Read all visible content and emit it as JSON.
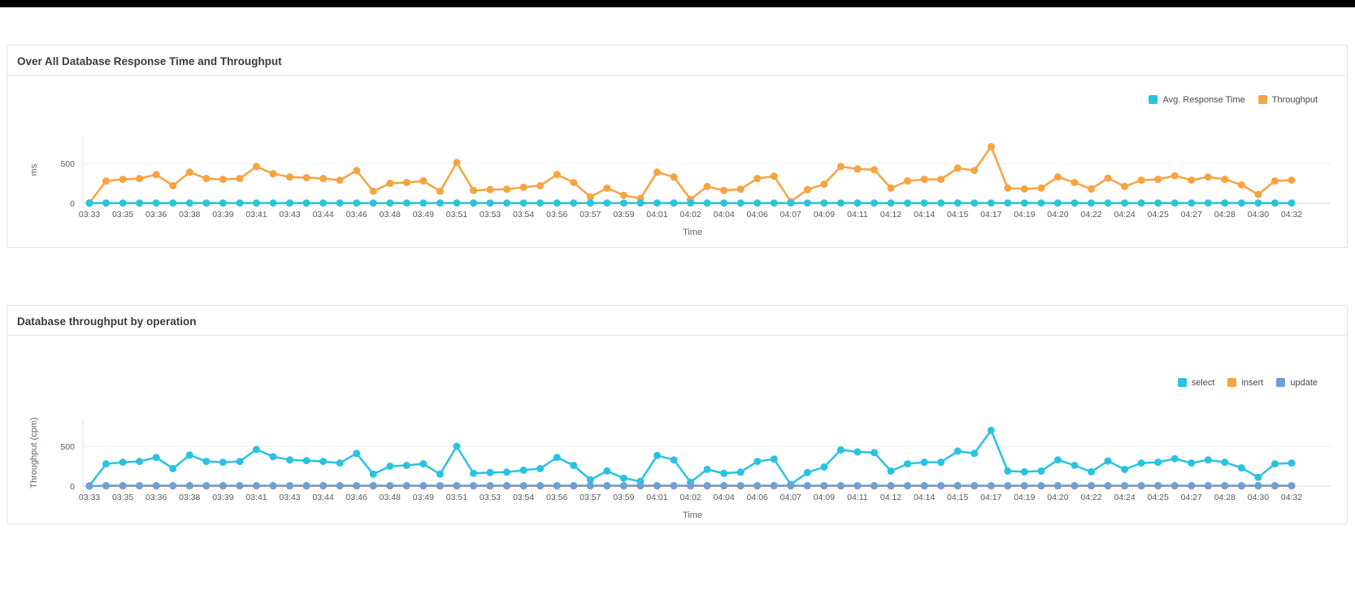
{
  "page": {
    "top_bar_color": "#000000",
    "background": "#ffffff"
  },
  "colors": {
    "cyan": "#29c3e2",
    "orange": "#f7a440",
    "blue": "#6aa1d8",
    "gridline": "#efefef",
    "baseline": "#d9d9d9",
    "axis_line": "#e0e0e0",
    "tick_text": "#55595c",
    "title_text": "#3c3c3c"
  },
  "chart_data": [
    {
      "type": "line",
      "title": "Over All Database Response Time and Throughput",
      "xlabel": "Time",
      "ylabel": "ms",
      "y_ticks": [
        0,
        500
      ],
      "ylim": [
        0,
        760
      ],
      "grid": true,
      "legend_position": "top-right",
      "label_every": 2,
      "x_labels": [
        "03:33",
        "03:35",
        "03:36",
        "03:38",
        "03:39",
        "03:41",
        "03:43",
        "03:44",
        "03:46",
        "03:48",
        "03:49",
        "03:51",
        "03:53",
        "03:54",
        "03:56",
        "03:57",
        "03:59",
        "04:01",
        "04:02",
        "04:04",
        "04:06",
        "04:07",
        "04:09",
        "04:11",
        "04:12",
        "04:14",
        "04:15",
        "04:17",
        "04:19",
        "04:20",
        "04:22",
        "04:24",
        "04:25",
        "04:27",
        "04:28",
        "04:30",
        "04:32"
      ],
      "draw_order": [
        1,
        0
      ],
      "series": [
        {
          "name": "Avg. Response Time",
          "color_key": "cyan",
          "values": [
            0,
            3,
            3,
            3,
            3,
            3,
            3,
            3,
            3,
            3,
            3,
            3,
            3,
            3,
            3,
            3,
            3,
            3,
            3,
            3,
            3,
            3,
            3,
            3,
            3,
            3,
            3,
            3,
            3,
            3,
            3,
            3,
            3,
            3,
            3,
            3,
            3,
            3,
            3,
            3,
            3,
            3,
            3,
            3,
            3,
            3,
            3,
            3,
            3,
            3,
            3,
            3,
            3,
            3,
            3,
            3,
            3,
            3,
            3,
            3,
            3,
            3,
            3,
            3,
            3,
            3,
            3,
            3,
            3,
            3,
            3,
            3,
            3
          ]
        },
        {
          "name": "Throughput",
          "color_key": "orange",
          "values": [
            5,
            280,
            300,
            310,
            360,
            220,
            390,
            310,
            300,
            310,
            460,
            370,
            330,
            320,
            310,
            290,
            410,
            150,
            250,
            260,
            280,
            150,
            510,
            160,
            170,
            175,
            200,
            220,
            360,
            260,
            80,
            190,
            100,
            60,
            390,
            330,
            50,
            210,
            160,
            175,
            310,
            340,
            20,
            170,
            240,
            460,
            430,
            420,
            190,
            280,
            300,
            300,
            440,
            410,
            710,
            190,
            180,
            190,
            330,
            260,
            180,
            315,
            210,
            290,
            300,
            345,
            290,
            330,
            300,
            230,
            110,
            280,
            290
          ]
        }
      ]
    },
    {
      "type": "line",
      "title": "Database throughput by operation",
      "xlabel": "Time",
      "ylabel": "Throughput (cpm)",
      "y_ticks": [
        0,
        500
      ],
      "ylim": [
        0,
        760
      ],
      "grid": true,
      "legend_position": "top-right",
      "label_every": 2,
      "x_labels": [
        "03:33",
        "03:35",
        "03:36",
        "03:38",
        "03:39",
        "03:41",
        "03:43",
        "03:44",
        "03:46",
        "03:48",
        "03:49",
        "03:51",
        "03:53",
        "03:54",
        "03:56",
        "03:57",
        "03:59",
        "04:01",
        "04:02",
        "04:04",
        "04:06",
        "04:07",
        "04:09",
        "04:11",
        "04:12",
        "04:14",
        "04:15",
        "04:17",
        "04:19",
        "04:20",
        "04:22",
        "04:24",
        "04:25",
        "04:27",
        "04:28",
        "04:30",
        "04:32"
      ],
      "draw_order": [
        0,
        1,
        2
      ],
      "series": [
        {
          "name": "select",
          "color_key": "cyan",
          "values": [
            5,
            280,
            300,
            310,
            360,
            220,
            390,
            310,
            300,
            310,
            460,
            370,
            330,
            320,
            310,
            290,
            410,
            150,
            250,
            260,
            280,
            150,
            500,
            160,
            170,
            175,
            200,
            220,
            360,
            260,
            80,
            190,
            100,
            60,
            385,
            330,
            50,
            210,
            160,
            175,
            310,
            340,
            20,
            170,
            240,
            455,
            430,
            420,
            190,
            280,
            300,
            300,
            440,
            410,
            700,
            190,
            180,
            190,
            330,
            260,
            180,
            315,
            210,
            290,
            300,
            345,
            290,
            330,
            300,
            230,
            110,
            280,
            290
          ]
        },
        {
          "name": "insert",
          "color_key": "orange",
          "values": [
            0,
            2,
            2,
            2,
            2,
            2,
            2,
            2,
            2,
            2,
            2,
            2,
            2,
            2,
            2,
            2,
            2,
            2,
            2,
            2,
            2,
            2,
            2,
            2,
            2,
            2,
            2,
            2,
            2,
            2,
            2,
            2,
            2,
            2,
            2,
            2,
            2,
            2,
            2,
            2,
            2,
            2,
            2,
            2,
            2,
            2,
            2,
            2,
            2,
            2,
            2,
            2,
            2,
            2,
            2,
            2,
            2,
            2,
            2,
            2,
            2,
            2,
            2,
            2,
            2,
            2,
            2,
            2,
            2,
            2,
            2,
            2,
            2
          ]
        },
        {
          "name": "update",
          "color_key": "blue",
          "values": [
            0,
            6,
            6,
            6,
            6,
            6,
            6,
            6,
            6,
            6,
            6,
            6,
            6,
            6,
            6,
            6,
            6,
            6,
            6,
            6,
            6,
            6,
            6,
            6,
            6,
            6,
            6,
            6,
            6,
            6,
            6,
            6,
            6,
            6,
            6,
            6,
            6,
            6,
            6,
            6,
            6,
            6,
            6,
            6,
            6,
            6,
            6,
            6,
            6,
            6,
            6,
            6,
            6,
            6,
            6,
            6,
            6,
            6,
            6,
            6,
            6,
            6,
            6,
            6,
            6,
            6,
            6,
            6,
            6,
            6,
            6,
            6,
            6
          ]
        }
      ]
    }
  ]
}
